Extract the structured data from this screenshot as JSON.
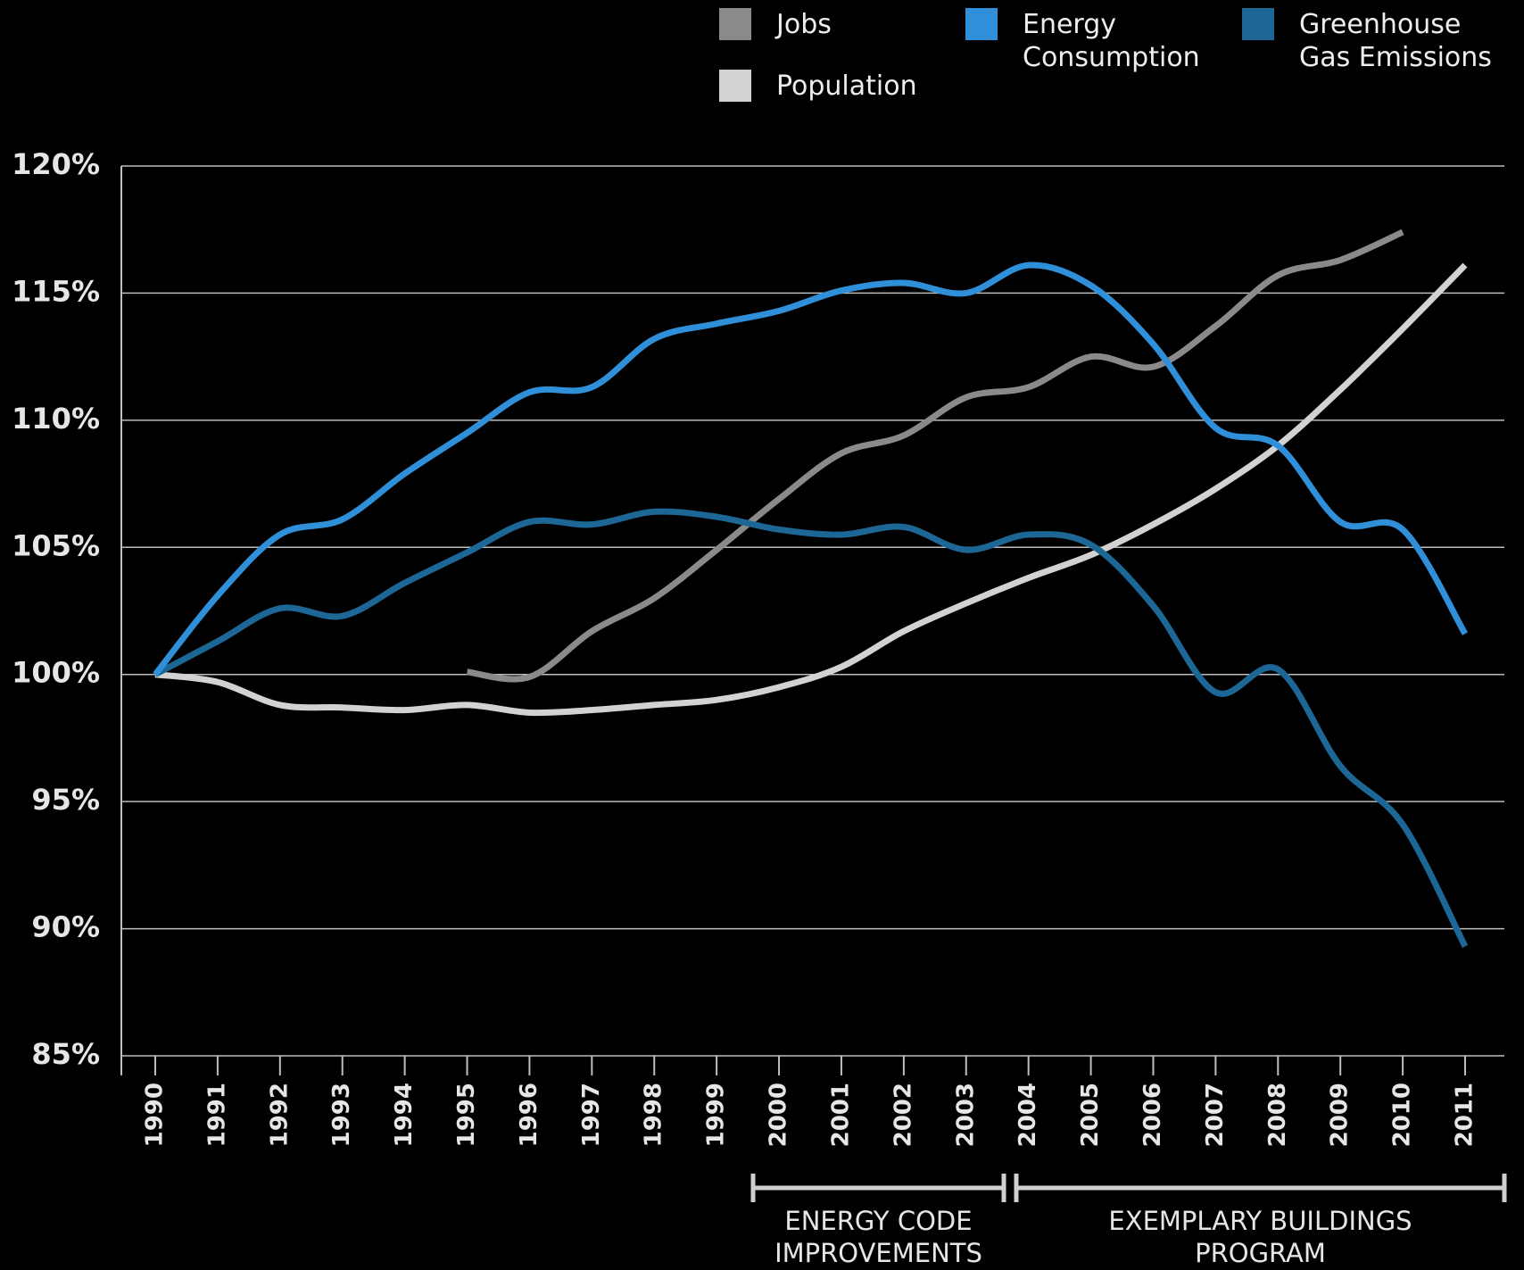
{
  "chart_data": {
    "type": "line",
    "categories": [
      "1990",
      "1991",
      "1992",
      "1993",
      "1994",
      "1995",
      "1996",
      "1997",
      "1998",
      "1999",
      "2000",
      "2001",
      "2002",
      "2003",
      "2004",
      "2005",
      "2006",
      "2007",
      "2008",
      "2009",
      "2010",
      "2011"
    ],
    "series": [
      {
        "name": "Jobs",
        "color": "#8a8a8d",
        "values": [
          null,
          null,
          null,
          null,
          null,
          100.1,
          99.9,
          101.7,
          103.0,
          104.9,
          106.9,
          108.7,
          109.4,
          110.9,
          111.3,
          112.5,
          112.1,
          113.7,
          115.7,
          116.3,
          117.4,
          null
        ]
      },
      {
        "name": "Energy Consumption",
        "color": "#2f8fd8",
        "values": [
          100,
          103.1,
          105.5,
          106.1,
          107.9,
          109.5,
          111.1,
          111.3,
          113.2,
          113.8,
          114.3,
          115.1,
          115.4,
          115.0,
          116.1,
          115.3,
          113.0,
          109.7,
          109.0,
          106.0,
          105.7,
          101.6
        ]
      },
      {
        "name": "Greenhouse Gas Emissions",
        "color": "#1d6796",
        "values": [
          100,
          101.3,
          102.6,
          102.3,
          103.6,
          104.8,
          106.0,
          105.9,
          106.4,
          106.2,
          105.7,
          105.5,
          105.8,
          104.9,
          105.5,
          105.1,
          102.7,
          99.3,
          100.2,
          96.4,
          94.1,
          89.3
        ]
      },
      {
        "name": "Population",
        "color": "#d2d2d2",
        "values": [
          100,
          99.7,
          98.8,
          98.7,
          98.6,
          98.8,
          98.5,
          98.6,
          98.8,
          99.0,
          99.5,
          100.3,
          101.7,
          102.8,
          103.8,
          104.7,
          105.9,
          107.3,
          109.0,
          111.2,
          113.6,
          116.1
        ]
      }
    ],
    "ylim": [
      85,
      120
    ],
    "yticks": [
      {
        "value": 85,
        "label": "85%"
      },
      {
        "value": 90,
        "label": "90%"
      },
      {
        "value": 95,
        "label": "95%"
      },
      {
        "value": 100,
        "label": "100%"
      },
      {
        "value": 105,
        "label": "105%"
      },
      {
        "value": 110,
        "label": "110%"
      },
      {
        "value": 115,
        "label": "115%"
      },
      {
        "value": 120,
        "label": "120%"
      }
    ],
    "grid": true,
    "annotations": [
      {
        "lines": [
          "ENERGY CODE",
          "IMPROVEMENTS"
        ]
      },
      {
        "lines": [
          "EXEMPLARY BUILDINGS",
          "PROGRAM"
        ]
      }
    ]
  }
}
